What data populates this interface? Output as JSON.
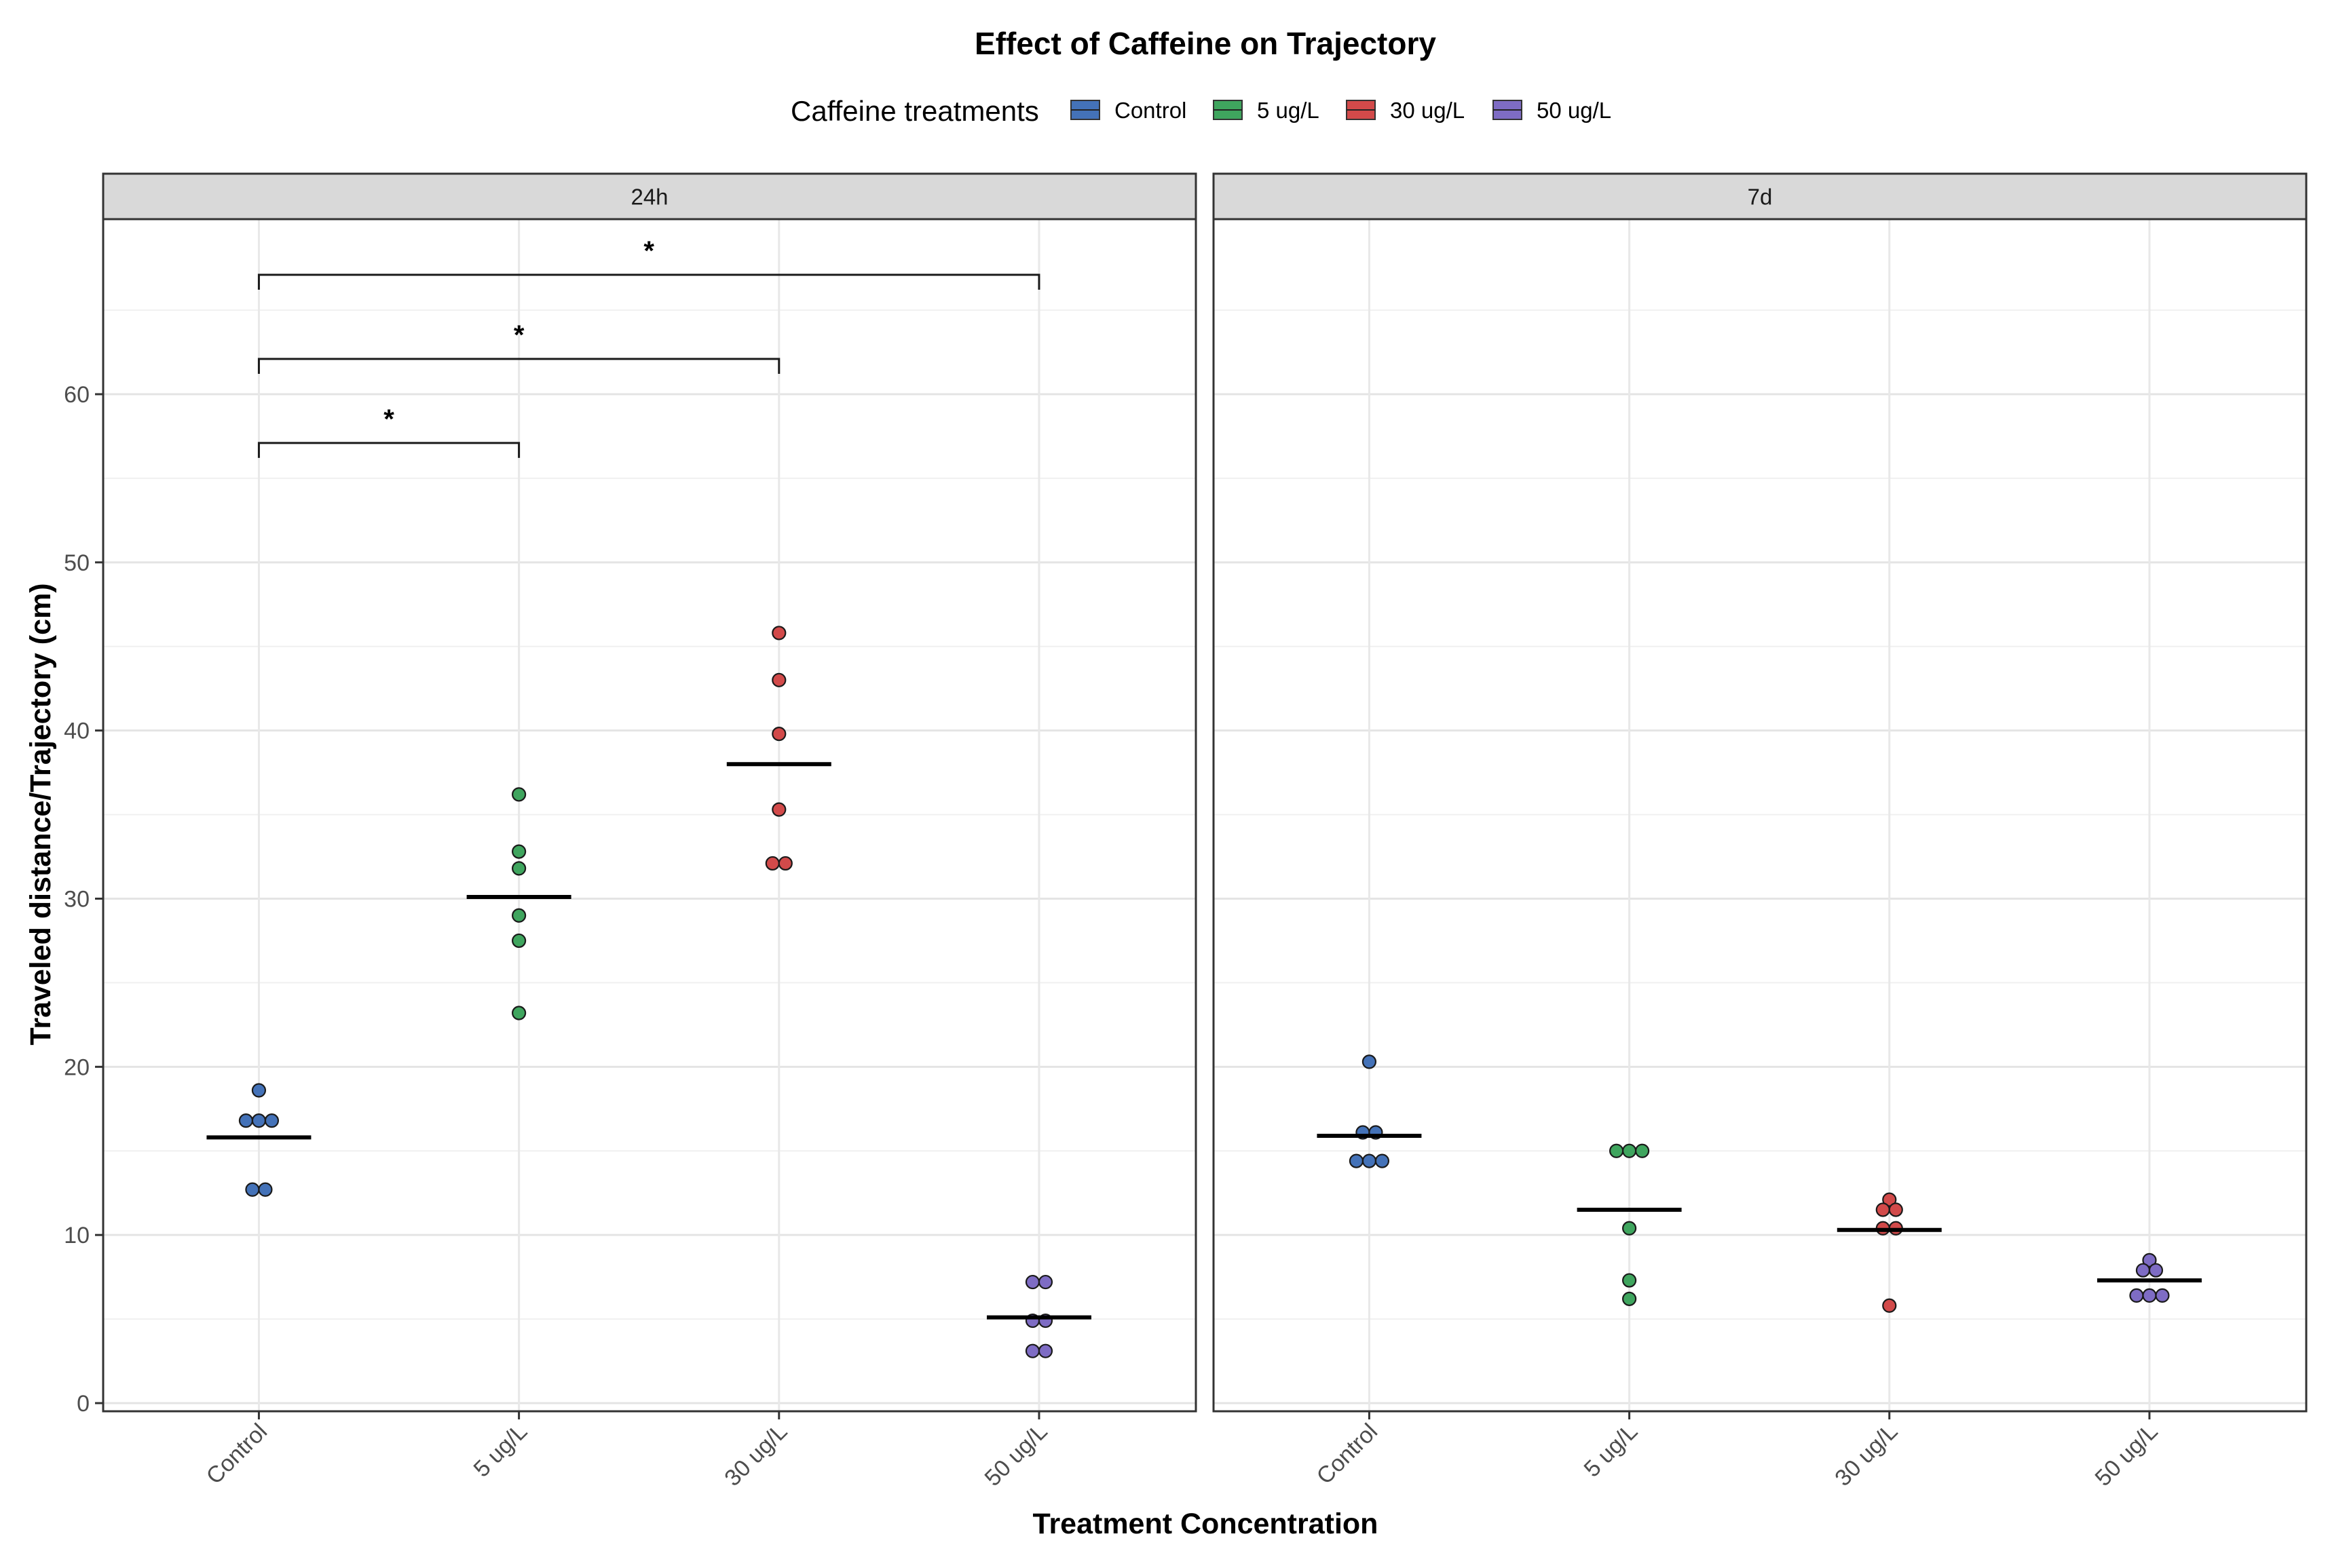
{
  "chart_data": {
    "type": "scatter",
    "title": "Effect of Caffeine on Trajectory",
    "xlabel": "Treatment Concentration",
    "ylabel": "Traveled distance/Trajectory (cm)",
    "legend": {
      "title": "Caffeine treatments",
      "placement": "top",
      "entries": [
        {
          "label": "Control",
          "color": "#4472b8"
        },
        {
          "label": "5 ug/L",
          "color": "#3fa55e"
        },
        {
          "label": "30 ug/L",
          "color": "#d24a4a"
        },
        {
          "label": "50 ug/L",
          "color": "#7e6cc4"
        }
      ]
    },
    "categories": [
      "Control",
      "5 ug/L",
      "30 ug/L",
      "50 ug/L"
    ],
    "ylim": [
      0,
      71
    ],
    "yticks": [
      0,
      10,
      20,
      30,
      40,
      50,
      60
    ],
    "grid": true,
    "panels": [
      {
        "label": "24h",
        "groups": [
          {
            "category": "Control",
            "points": [
              18.6,
              16.8,
              16.8,
              16.8,
              12.7,
              12.7
            ],
            "mean": 15.8
          },
          {
            "category": "5 ug/L",
            "points": [
              36.2,
              32.8,
              31.8,
              29.0,
              27.5,
              23.2
            ],
            "mean": 30.1
          },
          {
            "category": "30 ug/L",
            "points": [
              45.8,
              43.0,
              39.8,
              35.3,
              32.1,
              32.1
            ],
            "mean": 38.0
          },
          {
            "category": "50 ug/L",
            "points": [
              7.2,
              7.2,
              4.9,
              4.9,
              3.1,
              3.1
            ],
            "mean": 5.1
          }
        ],
        "significance": [
          {
            "from": "Control",
            "to": "5 ug/L",
            "y": 57.1,
            "label": "*"
          },
          {
            "from": "Control",
            "to": "30 ug/L",
            "y": 62.1,
            "label": "*"
          },
          {
            "from": "Control",
            "to": "50 ug/L",
            "y": 67.1,
            "label": "*"
          }
        ]
      },
      {
        "label": "7d",
        "groups": [
          {
            "category": "Control",
            "points": [
              20.3,
              16.1,
              16.1,
              14.4,
              14.4,
              14.4
            ],
            "mean": 15.9
          },
          {
            "category": "5 ug/L",
            "points": [
              15.0,
              15.0,
              15.0,
              10.4,
              7.3,
              6.2
            ],
            "mean": 11.5
          },
          {
            "category": "30 ug/L",
            "points": [
              12.1,
              11.5,
              11.5,
              10.4,
              10.4,
              5.8
            ],
            "mean": 10.3
          },
          {
            "category": "50 ug/L",
            "points": [
              8.5,
              7.9,
              7.9,
              6.4,
              6.4,
              6.4
            ],
            "mean": 7.3
          }
        ],
        "significance": []
      }
    ]
  }
}
